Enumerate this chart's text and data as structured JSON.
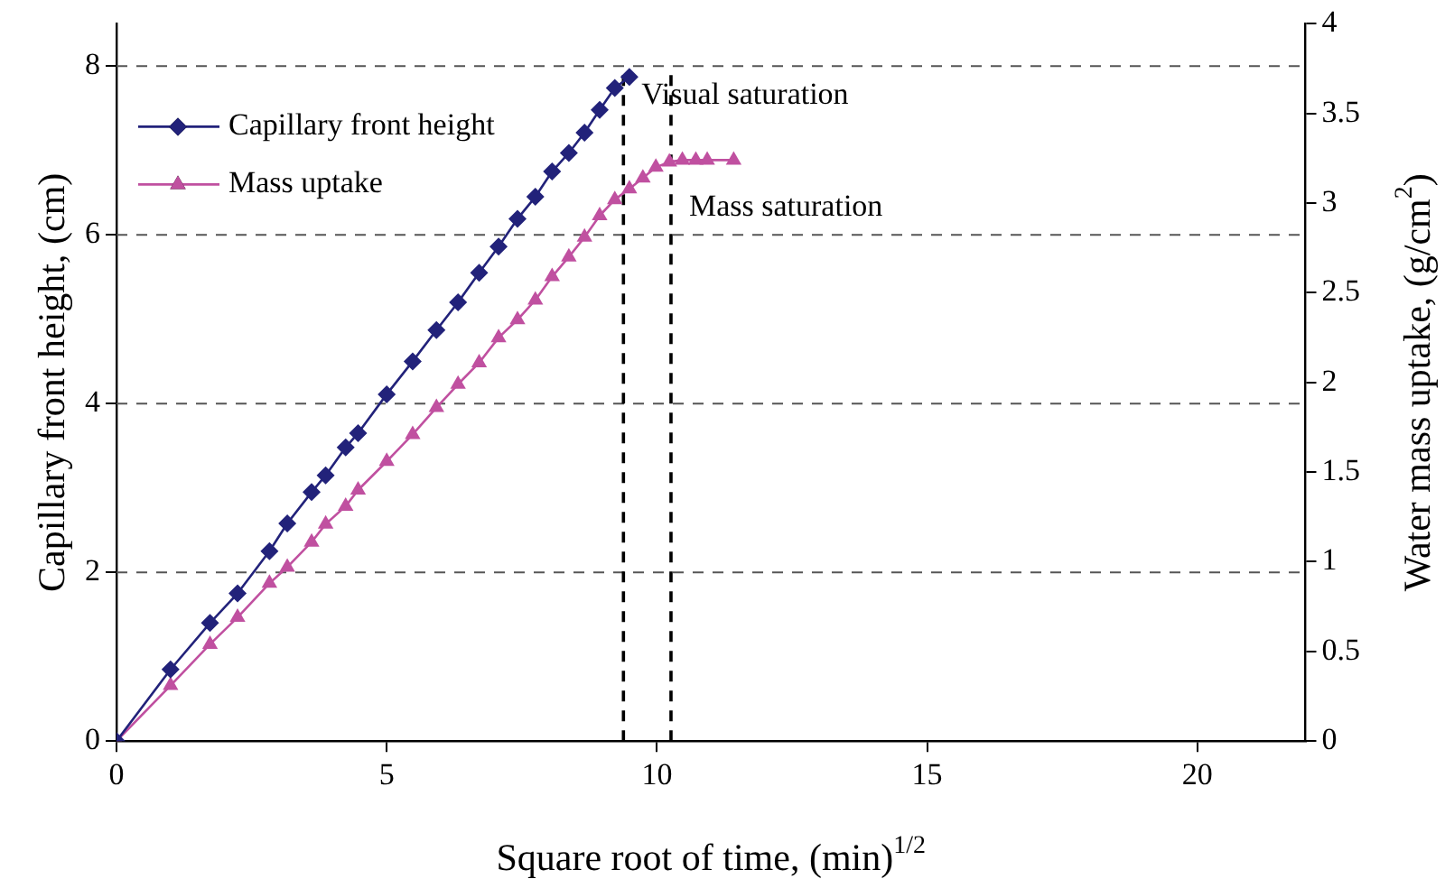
{
  "chart_data": {
    "type": "line",
    "xlabel": "Square root of time, (min)$^{1/2}$",
    "ylabel": "Capillary front height, (cm)",
    "y2label": "Water mass uptake, (g/cm$^{2}$)",
    "xlim": [
      0,
      22
    ],
    "xticks": [
      0,
      5,
      10,
      15,
      20
    ],
    "ylim": [
      0,
      8.5
    ],
    "yticks": [
      0,
      2,
      4,
      6,
      8
    ],
    "y2lim": [
      0,
      4
    ],
    "y2ticks": [
      0,
      0.5,
      1,
      1.5,
      2,
      2.5,
      3,
      3.5,
      4
    ],
    "grid": "y",
    "legend": "top left",
    "line_style": "solid",
    "series": [
      {
        "name": "Capillary front height",
        "color": "#22227a",
        "marker": "diamond",
        "x": [
          0,
          1,
          1.73,
          2.24,
          2.83,
          3.16,
          3.61,
          3.87,
          4.24,
          4.47,
          5,
          5.48,
          5.92,
          6.32,
          6.71,
          7.07,
          7.42,
          7.75,
          8.06,
          8.37,
          8.66,
          8.94,
          9.22,
          9.49
        ],
        "values": [
          0,
          0.85,
          1.4,
          1.75,
          2.25,
          2.58,
          2.95,
          3.15,
          3.48,
          3.65,
          4.11,
          4.5,
          4.87,
          5.2,
          5.55,
          5.86,
          6.19,
          6.45,
          6.75,
          6.97,
          7.21,
          7.48,
          7.74,
          7.87
        ]
      },
      {
        "name": "Mass uptake",
        "color": "#c050a0",
        "marker": "triangle",
        "axis": "y2",
        "x": [
          0,
          1,
          1.73,
          2.24,
          2.83,
          3.16,
          3.61,
          3.87,
          4.24,
          4.47,
          5,
          5.48,
          5.92,
          6.32,
          6.71,
          7.07,
          7.42,
          7.75,
          8.06,
          8.37,
          8.66,
          8.94,
          9.22,
          9.49,
          9.74,
          9.98,
          10.23,
          10.47,
          10.72,
          10.93,
          11.42
        ],
        "values": [
          0,
          0.31,
          0.54,
          0.69,
          0.88,
          0.97,
          1.11,
          1.21,
          1.31,
          1.4,
          1.56,
          1.71,
          1.86,
          1.99,
          2.11,
          2.25,
          2.35,
          2.46,
          2.59,
          2.7,
          2.81,
          2.93,
          3.02,
          3.08,
          3.14,
          3.2,
          3.23,
          3.24,
          3.24,
          3.24,
          3.24
        ]
      }
    ],
    "ref_lines": [
      {
        "axis": "x",
        "value": 9.38,
        "label": "Visual saturation",
        "color": "#000000",
        "line_style": "dashed"
      },
      {
        "axis": "x",
        "value": 10.26,
        "label": "Mass saturation",
        "color": "#000000",
        "line_style": "dashed"
      }
    ]
  }
}
